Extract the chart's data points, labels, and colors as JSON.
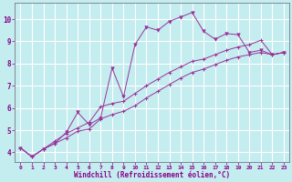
{
  "xlabel": "Windchill (Refroidissement éolien,°C)",
  "bg_color": "#c4edf0",
  "grid_color": "#ffffff",
  "line_color": "#993399",
  "xlim": [
    -0.5,
    23.5
  ],
  "ylim": [
    3.55,
    10.75
  ],
  "xticks": [
    0,
    1,
    2,
    3,
    4,
    5,
    6,
    7,
    8,
    9,
    10,
    11,
    12,
    13,
    14,
    15,
    16,
    17,
    18,
    19,
    20,
    21,
    22,
    23
  ],
  "yticks": [
    4,
    5,
    6,
    7,
    8,
    9,
    10
  ],
  "jagged_x": [
    0,
    1,
    2,
    3,
    4,
    5,
    6,
    7,
    8,
    9,
    10,
    11,
    12,
    13,
    14,
    15,
    16,
    17,
    18,
    19,
    20,
    21,
    22,
    23
  ],
  "jagged_y": [
    4.2,
    3.8,
    4.15,
    4.4,
    4.9,
    5.8,
    5.25,
    5.55,
    7.8,
    6.5,
    8.85,
    9.65,
    9.5,
    9.9,
    10.1,
    10.3,
    9.45,
    9.1,
    9.35,
    9.3,
    8.5,
    8.6,
    8.4,
    8.5
  ],
  "upper_x": [
    0,
    1,
    2,
    3,
    4,
    5,
    6,
    7,
    8,
    9,
    10,
    11,
    12,
    13,
    14,
    15,
    16,
    17,
    18,
    19,
    20,
    21,
    22,
    23
  ],
  "upper_y": [
    4.2,
    3.8,
    4.15,
    4.5,
    4.85,
    5.1,
    5.35,
    6.05,
    6.2,
    6.3,
    6.65,
    7.0,
    7.3,
    7.6,
    7.85,
    8.1,
    8.2,
    8.4,
    8.6,
    8.75,
    8.85,
    9.05,
    8.4,
    8.5
  ],
  "lower_x": [
    0,
    1,
    2,
    3,
    4,
    5,
    6,
    7,
    8,
    9,
    10,
    11,
    12,
    13,
    14,
    15,
    16,
    17,
    18,
    19,
    20,
    21,
    22,
    23
  ],
  "lower_y": [
    4.2,
    3.8,
    4.15,
    4.4,
    4.65,
    4.95,
    5.05,
    5.5,
    5.7,
    5.85,
    6.1,
    6.45,
    6.75,
    7.05,
    7.35,
    7.6,
    7.75,
    7.95,
    8.15,
    8.3,
    8.4,
    8.5,
    8.4,
    8.5
  ],
  "xlabel_fontsize": 5.5,
  "tick_fontsize_x": 4.5,
  "tick_fontsize_y": 5.5
}
